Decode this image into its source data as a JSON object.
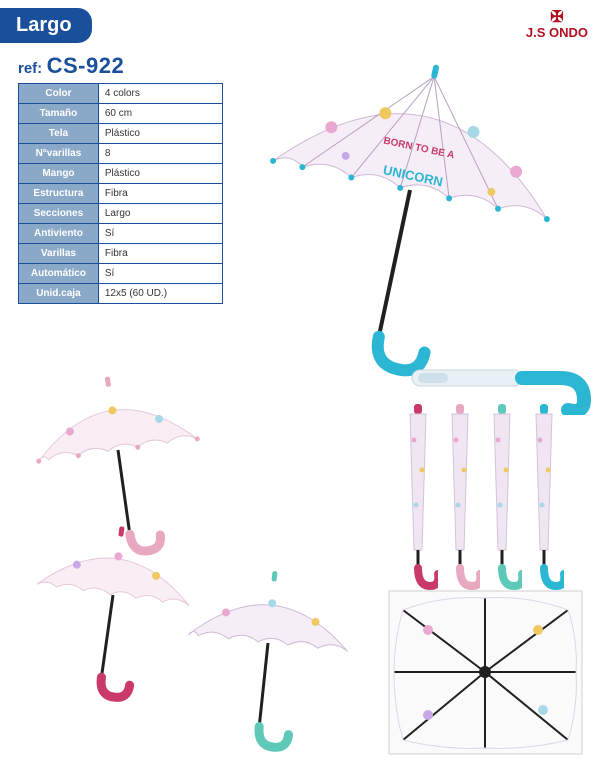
{
  "header": {
    "badge": "Largo",
    "brand": "J.S ONDO",
    "brand_icon": "✠"
  },
  "ref": {
    "label": "ref:",
    "value": "CS-922"
  },
  "specs": [
    {
      "k": "Color",
      "v": "4 colors"
    },
    {
      "k": "Tamaño",
      "v": "60 cm"
    },
    {
      "k": "Tela",
      "v": "Plástico"
    },
    {
      "k": "N°varillas",
      "v": "8"
    },
    {
      "k": "Mango",
      "v": "Plástico"
    },
    {
      "k": "Estructura",
      "v": "Fibra"
    },
    {
      "k": "Secciones",
      "v": "Largo"
    },
    {
      "k": "Antiviento",
      "v": "Sí"
    },
    {
      "k": "Varillas",
      "v": "Fibra"
    },
    {
      "k": "Automático",
      "v": "Sí"
    },
    {
      "k": "Unid.caja",
      "v": "12x5 (60 UD.)"
    }
  ],
  "colors": {
    "brand_blue": "#1a4f9c",
    "brand_red": "#b01020",
    "cell_header_bg": "#8aa8c8",
    "handle_blue": "#2bb6d4",
    "handle_pink": "#e85a8a",
    "handle_magenta": "#c93a6a",
    "handle_teal": "#5ec9b8",
    "canopy_fill": "#f5eef7",
    "canopy_stroke": "#d0b8d8",
    "shaft": "#202020"
  },
  "main_umbrella_text": {
    "line1": "BORN TO BE A",
    "line2": "UNICORN"
  },
  "closed_handles": [
    "#c93a6a",
    "#e8a8c0",
    "#5ec9b8",
    "#2bb6d4"
  ]
}
